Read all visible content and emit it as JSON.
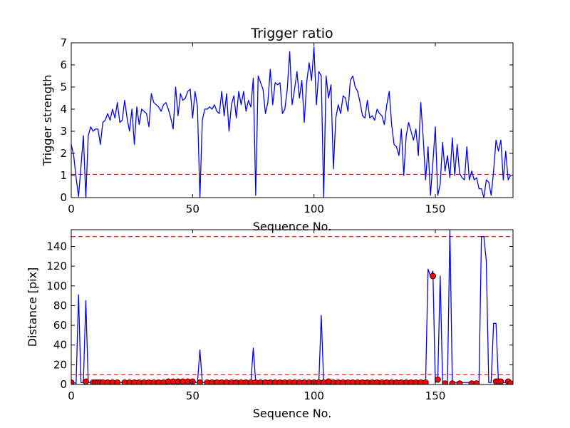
{
  "colors": {
    "line": "#0000ff",
    "threshold": "#ff0000",
    "marker_fill": "#ff0000",
    "marker_edge": "#000000",
    "axes": "#000000"
  },
  "chart_data": [
    {
      "type": "line",
      "title": "Trigger ratio",
      "xlabel": "Sequence No.",
      "ylabel": "Trigger strength",
      "xlim": [
        0,
        182
      ],
      "ylim": [
        0,
        7
      ],
      "xticks": [
        "0",
        "50",
        "100",
        "150"
      ],
      "yticks": [
        "0",
        "1",
        "2",
        "3",
        "4",
        "5",
        "6",
        "7"
      ],
      "grid": false,
      "threshold": 1.05,
      "series": [
        {
          "values": [
            2.4,
            1.9,
            0.9,
            0.05,
            1.4,
            2.8,
            0.0,
            2.8,
            3.2,
            3.0,
            3.1,
            3.1,
            2.4,
            3.4,
            3.5,
            3.8,
            3.5,
            4.0,
            3.6,
            4.3,
            3.4,
            3.5,
            4.4,
            3.6,
            3.0,
            4.0,
            2.4,
            4.1,
            3.3,
            4.0,
            3.9,
            3.8,
            3.2,
            4.7,
            4.3,
            4.2,
            4.1,
            3.9,
            4.2,
            4.3,
            4.0,
            3.6,
            3.1,
            5.0,
            3.7,
            4.7,
            4.4,
            4.5,
            4.8,
            4.9,
            3.6,
            4.8,
            4.1,
            0.0,
            3.5,
            4.0,
            4.0,
            4.1,
            4.0,
            4.2,
            3.9,
            3.8,
            4.8,
            3.7,
            4.7,
            3.0,
            4.2,
            4.6,
            3.6,
            4.8,
            4.2,
            4.8,
            3.9,
            4.4,
            4.1,
            5.4,
            0.1,
            5.5,
            5.2,
            4.9,
            3.8,
            4.3,
            5.8,
            4.2,
            5.2,
            5.1,
            5.2,
            3.8,
            4.0,
            4.9,
            6.6,
            4.2,
            4.9,
            5.7,
            4.5,
            5.3,
            3.4,
            5.2,
            6.1,
            5.3,
            6.8,
            4.2,
            5.7,
            5.5,
            0.0,
            5.5,
            4.5,
            5.1,
            1.3,
            3.6,
            4.2,
            3.8,
            4.6,
            4.5,
            3.9,
            5.3,
            5.5,
            5.0,
            4.8,
            4.3,
            3.7,
            3.6,
            4.4,
            3.6,
            3.7,
            3.5,
            4.0,
            3.8,
            3.7,
            3.3,
            4.2,
            4.8,
            3.3,
            2.4,
            2.3,
            1.9,
            3.1,
            1.0,
            2.8,
            3.4,
            3.0,
            2.6,
            3.1,
            1.9,
            4.3,
            2.7,
            0.8,
            2.3,
            0.1,
            1.6,
            3.2,
            0.1,
            0.6,
            2.5,
            1.2,
            1.9,
            0.9,
            2.7,
            1.0,
            2.4,
            1.1,
            0.9,
            0.8,
            2.3,
            0.8,
            1.2,
            0.8,
            0.9,
            0.4,
            0.4,
            0.0,
            0.8,
            0.7,
            0.1,
            1.2,
            2.6,
            2.1,
            2.6,
            0.8,
            2.1,
            0.8,
            1.0
          ]
        }
      ]
    },
    {
      "type": "line",
      "title": "",
      "xlabel": "Sequence No.",
      "ylabel": "Distance [pix]",
      "xlim": [
        0,
        182
      ],
      "ylim": [
        0,
        157
      ],
      "xticks": [
        "0",
        "50",
        "100",
        "150"
      ],
      "yticks": [
        "0",
        "20",
        "40",
        "60",
        "80",
        "100",
        "120",
        "140"
      ],
      "grid": false,
      "thresholds": [
        10,
        150
      ],
      "series": [
        {
          "line_values": [
            2,
            2,
            1,
            91,
            2,
            2,
            85,
            2,
            2,
            2,
            2,
            2,
            2,
            2,
            2,
            2,
            2,
            2,
            2,
            2,
            2,
            2,
            2,
            2,
            2,
            2,
            2,
            2,
            2,
            2,
            2,
            2,
            2,
            2,
            2,
            2,
            2,
            2,
            2,
            2,
            2,
            2,
            2,
            2,
            2,
            2,
            2,
            2,
            2,
            2,
            2,
            2,
            2,
            35,
            2,
            2,
            2,
            2,
            2,
            2,
            2,
            2,
            2,
            2,
            2,
            2,
            2,
            2,
            2,
            2,
            2,
            2,
            2,
            2,
            2,
            37,
            2,
            2,
            2,
            2,
            2,
            2,
            2,
            2,
            2,
            2,
            2,
            2,
            2,
            2,
            2,
            2,
            2,
            2,
            2,
            2,
            2,
            2,
            2,
            2,
            2,
            2,
            2,
            70,
            2,
            2,
            2,
            2,
            2,
            2,
            2,
            2,
            2,
            2,
            2,
            2,
            2,
            2,
            2,
            2,
            2,
            2,
            2,
            2,
            2,
            2,
            2,
            2,
            2,
            2,
            2,
            2,
            2,
            2,
            2,
            2,
            2,
            2,
            2,
            2,
            2,
            2,
            2,
            2,
            2,
            2,
            2,
            117,
            110,
            115,
            2,
            5,
            110,
            2,
            2,
            2,
            157,
            2,
            2,
            2,
            2,
            2,
            2,
            2,
            2,
            2,
            2,
            2,
            2,
            150,
            150,
            125,
            2,
            2,
            62,
            62,
            2,
            2,
            2,
            2,
            1
          ],
          "marker_indices": [
            0,
            6,
            9,
            10,
            11,
            12,
            13,
            15,
            17,
            19,
            22,
            24,
            26,
            28,
            30,
            32,
            34,
            36,
            38,
            40,
            42,
            44,
            46,
            48,
            50,
            53,
            56,
            58,
            60,
            62,
            64,
            66,
            68,
            70,
            72,
            74,
            76,
            78,
            80,
            82,
            84,
            86,
            88,
            90,
            92,
            94,
            96,
            98,
            100,
            102,
            104,
            106,
            108,
            110,
            112,
            114,
            116,
            118,
            120,
            122,
            124,
            126,
            128,
            130,
            132,
            134,
            136,
            138,
            140,
            142,
            144,
            146,
            149,
            151,
            154,
            157,
            160,
            165,
            167,
            175,
            176,
            177,
            180,
            181
          ],
          "marker_values": [
            2,
            3,
            2,
            2,
            2,
            2,
            2,
            2,
            2,
            2,
            2,
            2,
            2,
            2,
            2,
            2,
            2,
            2,
            2,
            3,
            3,
            3,
            3,
            3,
            3,
            2,
            2,
            2,
            2,
            2,
            2,
            2,
            2,
            2,
            2,
            2,
            2,
            2,
            2,
            2,
            2,
            2,
            2,
            2,
            2,
            2,
            2,
            2,
            2,
            2,
            2,
            3,
            2,
            2,
            2,
            2,
            2,
            2,
            2,
            2,
            2,
            2,
            2,
            2,
            2,
            2,
            2,
            2,
            2,
            2,
            2,
            2,
            110,
            5,
            1,
            1,
            1,
            1,
            1,
            3,
            3,
            3,
            3,
            1
          ]
        }
      ]
    }
  ]
}
